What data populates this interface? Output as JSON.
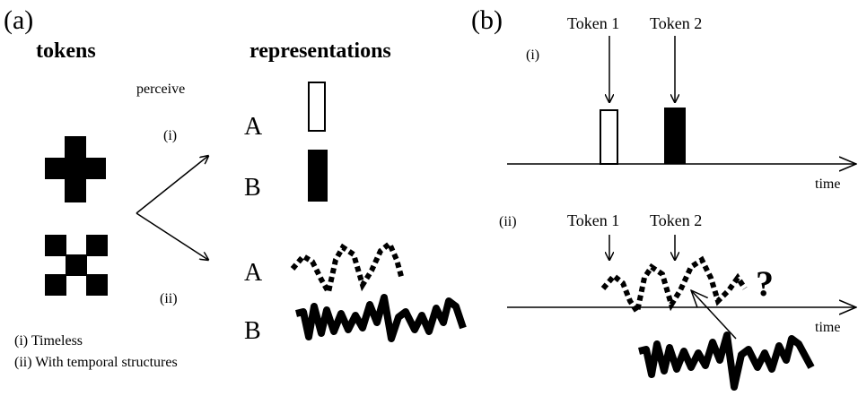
{
  "panel_a": {
    "label": "(a)",
    "tokens_heading": "tokens",
    "representations_heading": "representations",
    "perceive": "perceive",
    "branch_i": "(i)",
    "branch_ii": "(ii)",
    "rows_i": [
      "A",
      "B"
    ],
    "rows_ii": [
      "A",
      "B"
    ],
    "legend": [
      "(i) Timeless",
      "(ii) With temporal structures"
    ]
  },
  "panel_b": {
    "label": "(b)",
    "part_i": {
      "label": "(i)",
      "tokens": [
        "Token 1",
        "Token 2"
      ],
      "axis": "time"
    },
    "part_ii": {
      "label": "(ii)",
      "tokens": [
        "Token 1",
        "Token 2"
      ],
      "unknown": "?",
      "axis": "time"
    }
  }
}
